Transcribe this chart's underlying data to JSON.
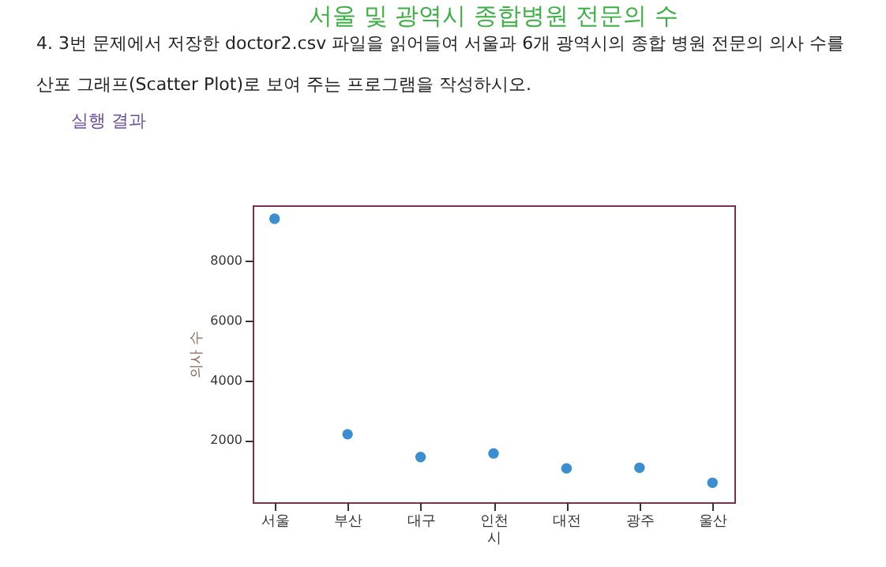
{
  "chart_data": {
    "type": "scatter",
    "title": "서울 및 광역시 종합병원 전문의 수",
    "xlabel": "시",
    "ylabel": "의사 수",
    "categories": [
      "서울",
      "부산",
      "대구",
      "인천",
      "대전",
      "광주",
      "울산"
    ],
    "series": [
      {
        "color": "#3b8ed0",
        "values": [
          9390,
          2200,
          1440,
          1560,
          1060,
          1080,
          580
        ]
      }
    ],
    "ylim": [
      -70,
      9840
    ],
    "yticks": [
      2000,
      4000,
      6000,
      8000
    ],
    "grid": false,
    "annotations": [
      "4. 3번 문제에서 저장한 doctor2.csv 파일을 읽어들여 서울과 6개 광역시의 종합 병원 전문의 의사 수를",
      "산포 그래프(Scatter Plot)로 보여 주는 프로그램을 작성하시오.",
      "실행 결과"
    ]
  }
}
